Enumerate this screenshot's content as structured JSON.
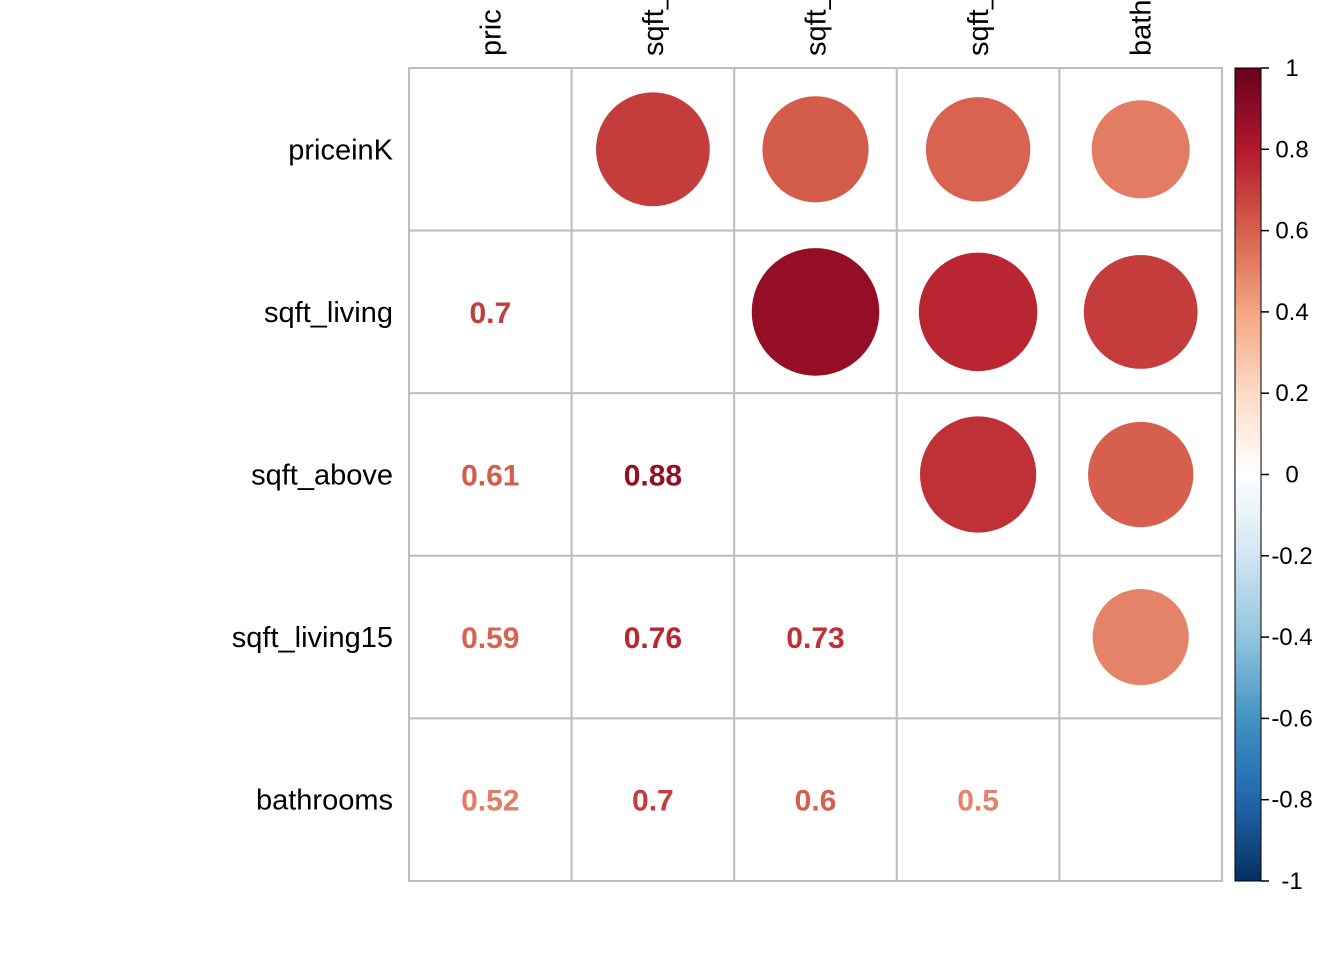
{
  "chart_data": {
    "type": "heatmap",
    "style": "corrplot-mixed-circle-number",
    "title": "",
    "variables": [
      "priceinK",
      "sqft_living",
      "sqft_above",
      "sqft_living15",
      "bathrooms"
    ],
    "column_labels_visible": [
      "pric",
      "sqft_",
      "sqft_",
      "sqft_",
      "bath"
    ],
    "matrix": [
      [
        1.0,
        0.7,
        0.61,
        0.59,
        0.52
      ],
      [
        0.7,
        1.0,
        0.88,
        0.76,
        0.7
      ],
      [
        0.61,
        0.88,
        1.0,
        0.73,
        0.6
      ],
      [
        0.59,
        0.76,
        0.73,
        1.0,
        0.5
      ],
      [
        0.52,
        0.7,
        0.6,
        0.5,
        1.0
      ]
    ],
    "lower_triangle_labels": [
      {
        "row": 1,
        "col": 0,
        "text": "0.7"
      },
      {
        "row": 2,
        "col": 0,
        "text": "0.61"
      },
      {
        "row": 2,
        "col": 1,
        "text": "0.88"
      },
      {
        "row": 3,
        "col": 0,
        "text": "0.59"
      },
      {
        "row": 3,
        "col": 1,
        "text": "0.76"
      },
      {
        "row": 3,
        "col": 2,
        "text": "0.73"
      },
      {
        "row": 4,
        "col": 0,
        "text": "0.52"
      },
      {
        "row": 4,
        "col": 1,
        "text": "0.7"
      },
      {
        "row": 4,
        "col": 2,
        "text": "0.6"
      },
      {
        "row": 4,
        "col": 3,
        "text": "0.5"
      }
    ],
    "upper_triangle": "circles",
    "diagonal": "blank",
    "color_scale": {
      "range": [
        -1,
        1
      ],
      "ticks": [
        "1",
        "0.8",
        "0.6",
        "0.4",
        "0.2",
        "0",
        "-0.2",
        "-0.4",
        "-0.6",
        "-0.8",
        "-1"
      ],
      "colors": [
        "#67001F",
        "#B2182B",
        "#D6604D",
        "#F4A582",
        "#FDDBC7",
        "#FFFFFF",
        "#D1E5F0",
        "#92C5DE",
        "#4393C3",
        "#2166AC",
        "#053061"
      ]
    },
    "grid_color": "#BEBEBE"
  }
}
